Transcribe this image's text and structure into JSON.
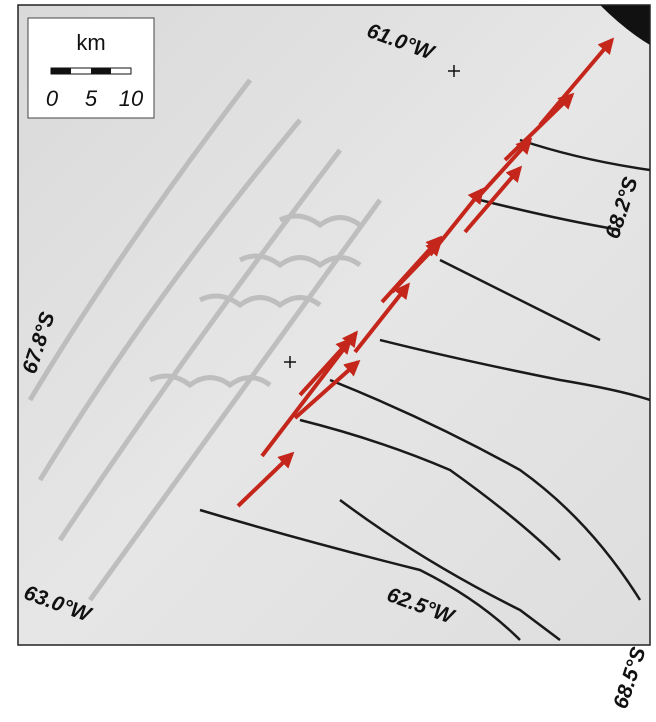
{
  "scale_bar": {
    "unit": "km",
    "labels": [
      "0",
      "5",
      "10"
    ]
  },
  "coordinate_labels": [
    "61.0°W",
    "68.2°S",
    "67.8°S",
    "63.0°W",
    "62.5°W",
    "68.5°S"
  ]
}
